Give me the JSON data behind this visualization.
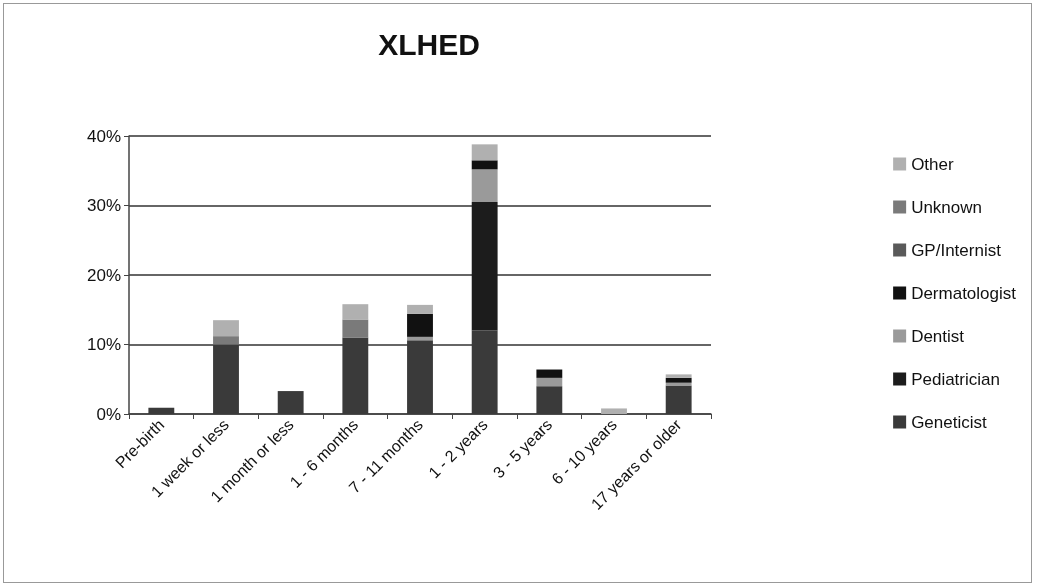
{
  "chart_data": {
    "type": "bar",
    "title": "XLHED",
    "stacked": true,
    "categories": [
      "Pre-birth",
      "1 week or less",
      "1 month or less",
      "1 - 6 months",
      "7 - 11 months",
      "1 - 2 years",
      "3 - 5 years",
      "6 - 10 years",
      "17 years or older"
    ],
    "series": [
      {
        "name": "Geneticist",
        "color": "#3a3a3a",
        "values": [
          0.9,
          10,
          3.3,
          11,
          10.6,
          12,
          4,
          0,
          4.1
        ]
      },
      {
        "name": "Pediatrician",
        "color": "#1c1c1c",
        "values": [
          0,
          0,
          0,
          0,
          0,
          18.5,
          0,
          0,
          0
        ]
      },
      {
        "name": "Dentist",
        "color": "#9a9a9a",
        "values": [
          0,
          0,
          0,
          0,
          0.5,
          4.7,
          1.2,
          0,
          0.4
        ]
      },
      {
        "name": "Dermatologist",
        "color": "#111111",
        "values": [
          0,
          0,
          0,
          0,
          3.3,
          1.3,
          1.2,
          0,
          0.7
        ]
      },
      {
        "name": "GP/Internist",
        "color": "#5a5a5a",
        "values": [
          0,
          0,
          0,
          0,
          0,
          0,
          0,
          0,
          0
        ]
      },
      {
        "name": "Unknown",
        "color": "#7a7a7a",
        "values": [
          0,
          1.2,
          0,
          2.6,
          0,
          0,
          0,
          0,
          0
        ]
      },
      {
        "name": "Other",
        "color": "#b0b0b0",
        "values": [
          0,
          2.3,
          0,
          2.2,
          1.3,
          2.3,
          0,
          0.8,
          0.5
        ]
      }
    ],
    "ylim": [
      0,
      40
    ],
    "yticks": [
      {
        "value": 0,
        "label": "0%"
      },
      {
        "value": 10,
        "label": "10%"
      },
      {
        "value": 20,
        "label": "20%"
      },
      {
        "value": 30,
        "label": "30%"
      },
      {
        "value": 40,
        "label": "40%"
      }
    ],
    "grid": "y",
    "legend": "right"
  }
}
